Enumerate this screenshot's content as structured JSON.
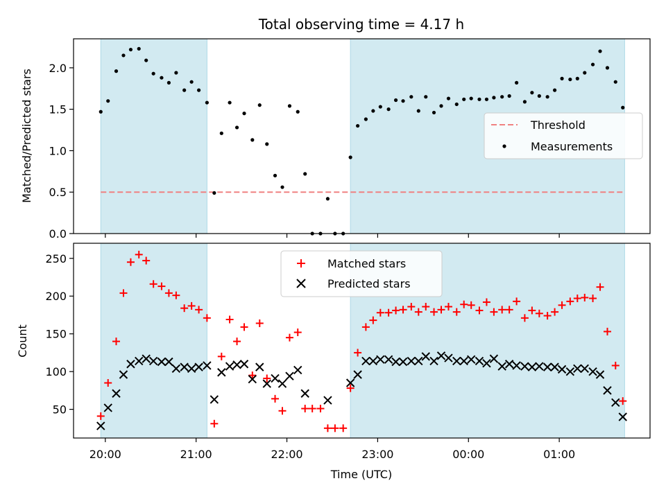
{
  "title": "Total observing time = 4.17 h",
  "xlabel": "Time (UTC)",
  "x_ticks": [
    "20:00",
    "21:00",
    "22:00",
    "23:00",
    "00:00",
    "01:00"
  ],
  "x_tick_hours": [
    20,
    21,
    22,
    23,
    24,
    25
  ],
  "x_range": [
    19.65,
    26.0
  ],
  "shaded_bands": [
    [
      19.95,
      21.12
    ],
    [
      22.7,
      25.72
    ]
  ],
  "colors": {
    "band": "#add8e6",
    "threshold": "#f08080",
    "measurement": "#000000",
    "matched": "#ff0000",
    "predicted": "#000000"
  },
  "chart_data": [
    {
      "type": "scatter",
      "ylabel": "Matched/Predicted stars",
      "ylim": [
        0,
        2.35
      ],
      "y_ticks": [
        "0.0",
        "0.5",
        "1.0",
        "1.5",
        "2.0"
      ],
      "y_tick_values": [
        0,
        0.5,
        1.0,
        1.5,
        2.0
      ],
      "legend_position": "center-right",
      "threshold": {
        "name": "Threshold",
        "value": 0.5,
        "x_range": [
          19.95,
          25.72
        ]
      },
      "series": [
        {
          "name": "Measurements",
          "x": [
            19.95,
            20.03,
            20.12,
            20.2,
            20.28,
            20.37,
            20.45,
            20.53,
            20.62,
            20.7,
            20.78,
            20.87,
            20.95,
            21.03,
            21.12,
            21.2,
            21.28,
            21.37,
            21.45,
            21.53,
            21.62,
            21.7,
            21.78,
            21.87,
            21.95,
            22.03,
            22.12,
            22.2,
            22.28,
            22.37,
            22.45,
            22.53,
            22.62,
            22.7,
            22.78,
            22.87,
            22.95,
            23.03,
            23.12,
            23.2,
            23.28,
            23.37,
            23.45,
            23.53,
            23.62,
            23.7,
            23.78,
            23.87,
            23.95,
            24.03,
            24.12,
            24.2,
            24.28,
            24.37,
            24.45,
            24.53,
            24.62,
            24.7,
            24.78,
            24.87,
            24.95,
            25.03,
            25.12,
            25.2,
            25.28,
            25.37,
            25.45,
            25.53,
            25.62,
            25.7
          ],
          "y": [
            1.47,
            1.6,
            1.96,
            2.15,
            2.22,
            2.23,
            2.09,
            1.93,
            1.88,
            1.82,
            1.94,
            1.73,
            1.83,
            1.73,
            1.58,
            0.49,
            1.21,
            1.58,
            1.28,
            1.45,
            1.13,
            1.55,
            1.08,
            0.7,
            0.56,
            1.54,
            1.47,
            0.72,
            0.0,
            0.0,
            0.42,
            0.0,
            0.0,
            0.92,
            1.3,
            1.38,
            1.48,
            1.53,
            1.5,
            1.61,
            1.6,
            1.65,
            1.48,
            1.65,
            1.46,
            1.54,
            1.63,
            1.56,
            1.62,
            1.63,
            1.62,
            1.62,
            1.64,
            1.65,
            1.66,
            1.82,
            1.59,
            1.7,
            1.66,
            1.65,
            1.73,
            1.87,
            1.86,
            1.87,
            1.94,
            2.04,
            2.2,
            2.0,
            1.83,
            1.52
          ]
        }
      ]
    },
    {
      "type": "scatter",
      "ylabel": "Count",
      "ylim": [
        12,
        270
      ],
      "y_ticks": [
        "50",
        "100",
        "150",
        "200",
        "250"
      ],
      "y_tick_values": [
        50,
        100,
        150,
        200,
        250
      ],
      "legend_position": "top-center",
      "series": [
        {
          "name": "Matched stars",
          "marker": "+",
          "x": [
            19.95,
            20.03,
            20.12,
            20.2,
            20.28,
            20.37,
            20.45,
            20.53,
            20.62,
            20.7,
            20.78,
            20.87,
            20.95,
            21.03,
            21.12,
            21.2,
            21.28,
            21.37,
            21.45,
            21.53,
            21.62,
            21.7,
            21.78,
            21.87,
            21.95,
            22.03,
            22.12,
            22.2,
            22.28,
            22.37,
            22.45,
            22.53,
            22.62,
            22.7,
            22.78,
            22.87,
            22.95,
            23.03,
            23.12,
            23.2,
            23.28,
            23.37,
            23.45,
            23.53,
            23.62,
            23.7,
            23.78,
            23.87,
            23.95,
            24.03,
            24.12,
            24.2,
            24.28,
            24.37,
            24.45,
            24.53,
            24.62,
            24.7,
            24.78,
            24.87,
            24.95,
            25.03,
            25.12,
            25.2,
            25.28,
            25.37,
            25.45,
            25.53,
            25.62,
            25.7
          ],
          "y": [
            41,
            85,
            140,
            204,
            245,
            255,
            247,
            216,
            213,
            204,
            201,
            184,
            187,
            182,
            171,
            31,
            120,
            169,
            140,
            159,
            95,
            164,
            91,
            64,
            48,
            145,
            152,
            51,
            51,
            51,
            25,
            25,
            25,
            78,
            125,
            159,
            168,
            178,
            178,
            181,
            182,
            186,
            179,
            186,
            179,
            182,
            186,
            179,
            189,
            188,
            181,
            192,
            179,
            182,
            182,
            193,
            171,
            181,
            177,
            174,
            179,
            188,
            193,
            197,
            198,
            197,
            212,
            153,
            108,
            61
          ]
        },
        {
          "name": "Predicted stars",
          "marker": "x",
          "x": [
            19.95,
            20.03,
            20.12,
            20.2,
            20.28,
            20.37,
            20.45,
            20.53,
            20.62,
            20.7,
            20.78,
            20.87,
            20.95,
            21.03,
            21.12,
            21.2,
            21.28,
            21.37,
            21.45,
            21.53,
            21.62,
            21.7,
            21.78,
            21.87,
            21.95,
            22.03,
            22.12,
            22.2,
            22.28,
            22.37,
            22.45,
            22.53,
            22.62,
            22.7,
            22.78,
            22.87,
            22.95,
            23.03,
            23.12,
            23.2,
            23.28,
            23.37,
            23.45,
            23.53,
            23.62,
            23.7,
            23.78,
            23.87,
            23.95,
            24.03,
            24.12,
            24.2,
            24.28,
            24.37,
            24.45,
            24.53,
            24.62,
            24.7,
            24.78,
            24.87,
            24.95,
            25.03,
            25.12,
            25.2,
            25.28,
            25.37,
            25.45,
            25.53,
            25.62,
            25.7
          ],
          "y": [
            28,
            52,
            71,
            96,
            110,
            114,
            117,
            114,
            113,
            113,
            104,
            106,
            104,
            106,
            108,
            63,
            99,
            107,
            109,
            110,
            90,
            106,
            84,
            91,
            84,
            94,
            102,
            71,
            null,
            null,
            62,
            null,
            null,
            85,
            96,
            114,
            114,
            116,
            116,
            113,
            113,
            114,
            114,
            120,
            114,
            121,
            118,
            114,
            114,
            116,
            114,
            111,
            117,
            107,
            110,
            108,
            107,
            106,
            107,
            106,
            106,
            103,
            100,
            104,
            104,
            100,
            96,
            75,
            59,
            40
          ]
        }
      ]
    }
  ]
}
